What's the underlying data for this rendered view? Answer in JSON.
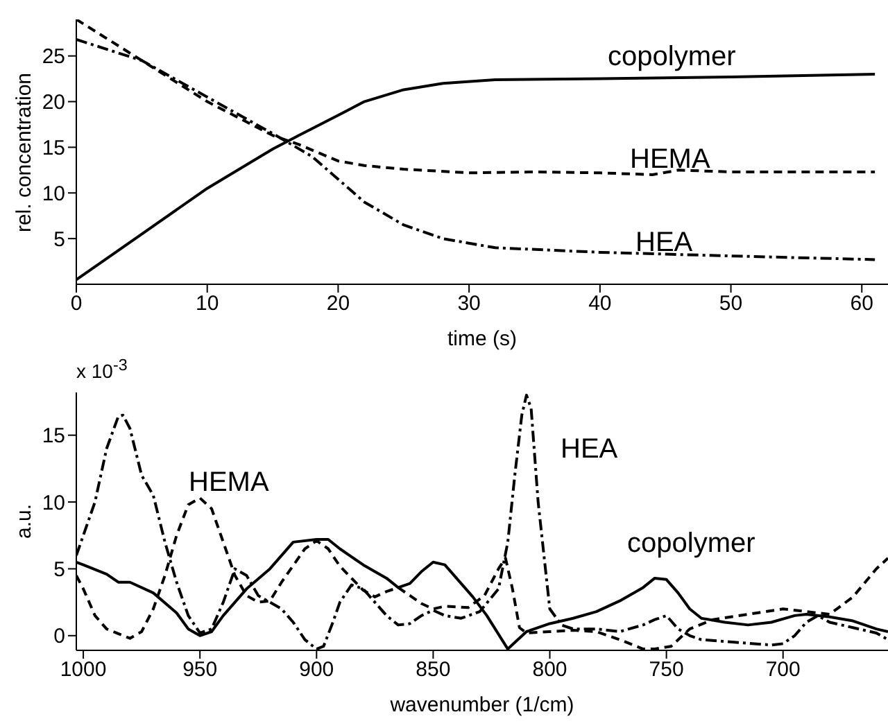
{
  "chart_data": [
    {
      "type": "line",
      "xlabel": "time (s)",
      "ylabel": "rel. concentration",
      "xlim": [
        0,
        62
      ],
      "xticks": [
        0,
        10,
        20,
        30,
        40,
        50,
        60
      ],
      "ylim": [
        0,
        29
      ],
      "yticks": [
        5,
        10,
        15,
        20,
        25
      ],
      "grid": false,
      "legend": false,
      "marker": "none",
      "series": [
        {
          "color": "#000000",
          "line_style": "solid",
          "x": [
            0,
            2,
            5,
            10,
            15,
            17,
            20,
            22,
            25,
            28,
            32,
            40,
            50,
            61
          ],
          "values": [
            0.5,
            2.5,
            5.5,
            10.5,
            14.8,
            16.3,
            18.5,
            20,
            21.3,
            22,
            22.4,
            22.5,
            22.7,
            23
          ]
        },
        {
          "color": "#000000",
          "line_style": "dashed",
          "x": [
            0,
            2,
            5,
            10,
            15,
            17,
            20,
            22,
            25,
            30,
            35,
            40,
            44,
            46,
            50,
            61
          ],
          "values": [
            29,
            27.2,
            24.5,
            20,
            16.3,
            15.3,
            13.5,
            13,
            12.6,
            12.2,
            12.3,
            12.2,
            12,
            12.5,
            12.3,
            12.3
          ]
        },
        {
          "color": "#000000",
          "line_style": "dashdot",
          "x": [
            0,
            5,
            10,
            15,
            18,
            20,
            22,
            25,
            28,
            32,
            40,
            50,
            61
          ],
          "values": [
            26.8,
            24.5,
            20.5,
            16.5,
            14,
            11.5,
            9,
            6.5,
            5,
            4,
            3.5,
            3.1,
            2.7
          ]
        }
      ],
      "annotations": [
        "copolymer",
        "HEMA",
        "HEA"
      ]
    },
    {
      "type": "line",
      "xlabel": "wavenumber (1/cm)",
      "ylabel": "a.u.",
      "xlim": [
        1003,
        655
      ],
      "xticks": [
        1000,
        950,
        900,
        850,
        800,
        750,
        700
      ],
      "ylim": [
        -1.1,
        18.2
      ],
      "yticks": [
        0,
        5,
        10,
        15
      ],
      "grid": false,
      "legend": false,
      "marker": "none",
      "series": [
        {
          "color": "#000000",
          "line_style": "solid",
          "x": [
            1003,
            1000,
            990,
            985,
            980,
            970,
            960,
            955,
            950,
            945,
            940,
            930,
            920,
            910,
            900,
            895,
            890,
            880,
            870,
            865,
            860,
            855,
            850,
            845,
            833,
            827,
            818,
            810,
            800,
            790,
            780,
            770,
            760,
            755,
            750,
            745,
            740,
            735,
            725,
            715,
            705,
            695,
            690,
            680,
            670,
            660,
            655
          ],
          "values": [
            5.5,
            5.3,
            4.6,
            4,
            4,
            3.2,
            1.7,
            0.5,
            0,
            0.3,
            1.5,
            3.5,
            5,
            7,
            7.2,
            7.2,
            6.5,
            5.3,
            4.3,
            3.6,
            3.9,
            4.8,
            5.5,
            5.3,
            2.9,
            1.5,
            -1,
            0.3,
            0.9,
            1.3,
            1.8,
            2.6,
            3.6,
            4.3,
            4.2,
            3.2,
            2,
            1.3,
            1,
            0.8,
            1,
            1.5,
            1.6,
            1.4,
            1.1,
            0.5,
            0.3
          ]
        },
        {
          "color": "#000000",
          "line_style": "dashed",
          "x": [
            1003,
            1000,
            995,
            990,
            980,
            975,
            970,
            965,
            960,
            955,
            950,
            945,
            940,
            935,
            930,
            925,
            920,
            915,
            905,
            900,
            895,
            890,
            885,
            880,
            875,
            870,
            865,
            860,
            855,
            850,
            845,
            835,
            828,
            822,
            819,
            816,
            813,
            810,
            800,
            790,
            780,
            770,
            760,
            755,
            748,
            740,
            730,
            715,
            700,
            690,
            680,
            670,
            660,
            655
          ],
          "values": [
            4.5,
            3.5,
            1.5,
            0.5,
            -0.2,
            0.3,
            2,
            4.5,
            7.5,
            9.8,
            10.3,
            9.5,
            7,
            4.5,
            3,
            2.5,
            2.6,
            4,
            6.5,
            7.1,
            6.5,
            5.2,
            4.3,
            3.4,
            2.9,
            3.3,
            3.6,
            3,
            2.4,
            2,
            2.2,
            2.1,
            3,
            5,
            5.8,
            3.5,
            0.6,
            0.2,
            0.3,
            0.4,
            0.3,
            -0.3,
            -1,
            -1,
            -0.8,
            0.5,
            1.2,
            1.6,
            2,
            1.8,
            1.6,
            2.9,
            5,
            5.8
          ]
        },
        {
          "color": "#000000",
          "line_style": "dashdot",
          "x": [
            1003,
            995,
            990,
            985,
            983,
            980,
            975,
            970,
            965,
            960,
            955,
            950,
            945,
            940,
            935,
            930,
            925,
            920,
            915,
            910,
            905,
            900,
            897,
            893,
            890,
            885,
            880,
            875,
            870,
            865,
            860,
            855,
            850,
            845,
            838,
            830,
            822,
            818,
            815,
            812,
            810,
            808,
            805,
            800,
            795,
            790,
            780,
            770,
            760,
            755,
            750,
            745,
            740,
            735,
            720,
            705,
            700,
            695,
            690,
            685,
            680,
            670,
            660,
            655
          ],
          "values": [
            6,
            10,
            14,
            16.4,
            16.5,
            15.5,
            12,
            10.5,
            7,
            4,
            1.5,
            0.2,
            0.5,
            2.5,
            5,
            4.5,
            3,
            2.5,
            2,
            1,
            -0.3,
            -1,
            -0.8,
            1,
            2.5,
            3.8,
            3.5,
            2.5,
            1.5,
            0.8,
            0.9,
            1.5,
            1.9,
            1.5,
            1.3,
            1.8,
            3.5,
            7,
            12,
            16.5,
            18,
            17,
            10,
            2,
            0.8,
            0.5,
            0.5,
            0.3,
            0.8,
            1.2,
            1.5,
            0.5,
            0,
            -0.3,
            -0.5,
            -0.7,
            -0.6,
            0,
            1,
            1.5,
            1,
            0.6,
            0.2,
            -0.3
          ]
        }
      ],
      "annotations": [
        "x 10$^{-3}$",
        "HEMA",
        "HEA",
        "copolymer"
      ]
    }
  ]
}
